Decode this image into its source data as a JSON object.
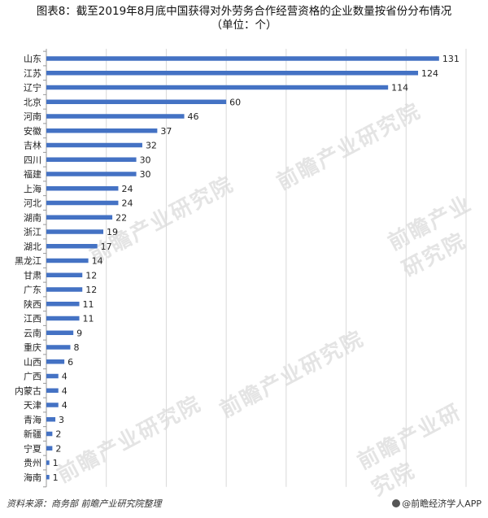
{
  "header": {
    "title": "图表8：截至2019年8月底中国获得对外劳务合作经营资格的企业数量按省份分布情况",
    "subtitle": "（单位：个）"
  },
  "footer": {
    "source": "资料来源：商务部 前瞻产业研究院整理",
    "brand": "@前瞻经济学人APP"
  },
  "watermark": {
    "text": "前瞻产业研究院"
  },
  "colors": {
    "bar": "#4472C4",
    "axis": "#999999",
    "grid": "#d9d9d9"
  },
  "chart_data": {
    "type": "bar",
    "orientation": "horizontal",
    "categories": [
      "山东",
      "江苏",
      "辽宁",
      "北京",
      "河南",
      "安徽",
      "吉林",
      "四川",
      "福建",
      "上海",
      "河北",
      "湖南",
      "浙江",
      "湖北",
      "黑龙江",
      "甘肃",
      "广东",
      "陕西",
      "江西",
      "云南",
      "重庆",
      "山西",
      "广西",
      "内蒙古",
      "天津",
      "青海",
      "新疆",
      "宁夏",
      "贵州",
      "海南"
    ],
    "values": [
      131,
      124,
      114,
      60,
      46,
      37,
      32,
      30,
      30,
      24,
      24,
      22,
      19,
      17,
      14,
      12,
      12,
      11,
      11,
      9,
      8,
      6,
      4,
      4,
      4,
      3,
      2,
      2,
      1,
      1
    ],
    "xlim": [
      0,
      140
    ],
    "grid": true,
    "legend": "none",
    "data_labels": true
  }
}
